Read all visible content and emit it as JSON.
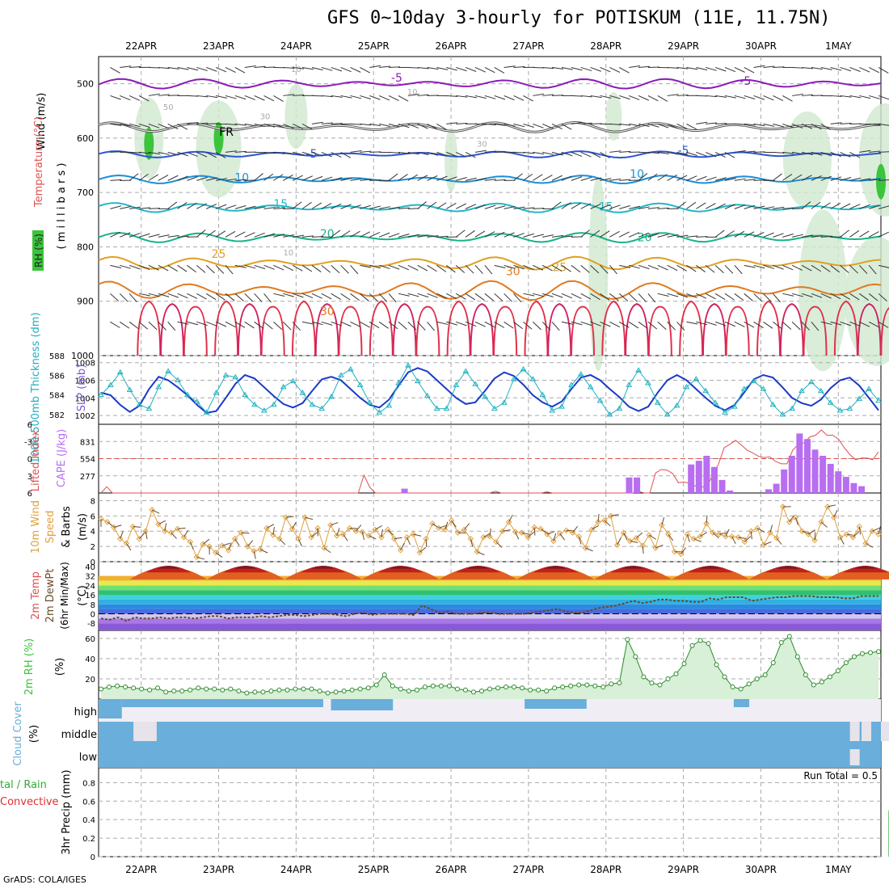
{
  "title": "GFS 0~10day 3-hourly for POTISKUM (11E, 11.75N)",
  "credit": "GrADS: COLA/IGES",
  "dates": [
    "22APR",
    "23APR",
    "24APR",
    "25APR",
    "26APR",
    "27APR",
    "28APR",
    "29APR",
    "30APR",
    "1MAY"
  ],
  "colors": {
    "temp_purple": "#8a1bb8",
    "freezing": "#000000",
    "t5": "#2a55d6",
    "t10": "#1a8fd6",
    "t15": "#20b8c8",
    "t20": "#17b38a",
    "t25": "#e0a020",
    "t30": "#e07a20",
    "hot": "#e0304a",
    "rh": "#3cc43c",
    "slp": "#1a3ac8",
    "thick": "#20b0c0",
    "cape": "#b86ef0",
    "li": "#e05050",
    "wind": "#e0a040",
    "dew": "#6a4a2a",
    "cloud": "#6aaedb",
    "precip_green": "#33aa33",
    "precip_red": "#e03030"
  },
  "chart_data": [
    {
      "type": "heatmap",
      "panel": "upper-air",
      "ylabel_wind": "Wind (m/s)",
      "ylabel_temp": "Temperature (°C)",
      "ylabel_rh": "RH (%)",
      "ylabel_units": "( m i l l i b a r s )",
      "yticks": [
        500,
        600,
        700,
        800,
        900,
        1000
      ],
      "ylim": [
        450,
        1000
      ],
      "isotherm_labels": [
        {
          "text": "-5",
          "day": 3.3,
          "p": 496
        },
        {
          "text": "-5",
          "day": 7.8,
          "p": 502
        },
        {
          "text": "FR",
          "day": 1.1,
          "p": 596
        },
        {
          "text": "-5",
          "day": 2.2,
          "p": 636
        },
        {
          "text": "-5",
          "day": 7.0,
          "p": 630
        },
        {
          "text": "10",
          "day": 1.3,
          "p": 680
        },
        {
          "text": "10",
          "day": 6.4,
          "p": 673
        },
        {
          "text": "15",
          "day": 1.8,
          "p": 728
        },
        {
          "text": "15",
          "day": 6.0,
          "p": 733
        },
        {
          "text": "20",
          "day": 2.4,
          "p": 783
        },
        {
          "text": "20",
          "day": 6.5,
          "p": 790
        },
        {
          "text": "25",
          "day": 1.0,
          "p": 820
        },
        {
          "text": "25",
          "day": 5.4,
          "p": 845
        },
        {
          "text": "30",
          "day": 4.8,
          "p": 852
        },
        {
          "text": "30",
          "day": 2.4,
          "p": 926
        }
      ],
      "rh_labels": [
        {
          "text": "10",
          "day": 2.0,
          "p": 478
        },
        {
          "text": "50",
          "day": 0.35,
          "p": 548
        },
        {
          "text": "30",
          "day": 1.6,
          "p": 565
        },
        {
          "text": "10",
          "day": 3.5,
          "p": 520
        },
        {
          "text": "30",
          "day": 4.4,
          "p": 616
        },
        {
          "text": "10",
          "day": 1.9,
          "p": 816
        }
      ]
    },
    {
      "type": "line",
      "panel": "slp-thickness",
      "ylabel_left": "1000-500mb Thickness (dm)",
      "ylabel_right": "SLP (mb)",
      "yticks_thick": [
        582,
        584,
        586,
        588
      ],
      "yticks_slp": [
        1002,
        1004,
        1006,
        1008
      ],
      "series": [
        {
          "name": "SLP",
          "values": [
            1004.6,
            1004.3,
            1003.2,
            1002.4,
            1003.1,
            1005.0,
            1006.4,
            1006.0,
            1005.2,
            1004.3,
            1003.2,
            1002.3,
            1002.5,
            1004.0,
            1005.6,
            1006.6,
            1006.2,
            1005.2,
            1004.2,
            1003.3,
            1002.9,
            1003.4,
            1004.8,
            1006.1,
            1006.4,
            1006.0,
            1005.0,
            1004.0,
            1003.2,
            1002.9,
            1003.8,
            1005.4,
            1006.9,
            1007.4,
            1007.0,
            1006.0,
            1005.0,
            1004.0,
            1003.3,
            1003.5,
            1004.8,
            1006.2,
            1006.9,
            1006.5,
            1005.5,
            1004.3,
            1003.5,
            1003.0,
            1003.6,
            1005.0,
            1006.3,
            1006.6,
            1006.0,
            1005.0,
            1004.1,
            1003.0,
            1002.5,
            1003.0,
            1004.6,
            1006.0,
            1006.6,
            1006.0,
            1005.0,
            1004.0,
            1003.1,
            1002.6,
            1003.2,
            1004.6,
            1006.1,
            1006.6,
            1006.3,
            1005.2,
            1004.0,
            1003.4,
            1003.1,
            1003.8,
            1005.1,
            1006.0,
            1006.3,
            1005.4,
            1004.0,
            1002.6
          ]
        },
        {
          "name": "Thickness",
          "values": [
            584.0,
            585.0,
            586.3,
            584.5,
            583.0,
            582.6,
            584.8,
            586.4,
            585.5,
            584.0,
            583.3,
            582.2,
            584.2,
            586.0,
            585.8,
            584.0,
            583.0,
            582.4,
            583.0,
            584.8,
            585.4,
            584.2,
            583.0,
            582.6,
            583.8,
            586.0,
            586.6,
            585.0,
            583.2,
            582.2,
            582.9,
            585.2,
            587.0,
            585.4,
            583.9,
            582.6,
            582.6,
            585.0,
            586.4,
            585.1,
            583.8,
            582.6,
            583.2,
            585.6,
            586.6,
            585.6,
            584.0,
            582.4,
            582.8,
            585.0,
            586.1,
            584.8,
            583.4,
            582.0,
            582.6,
            585.0,
            586.5,
            585.2,
            583.2,
            582.0,
            582.9,
            584.8,
            585.6,
            584.4,
            583.2,
            582.2,
            582.8,
            584.6,
            585.4,
            584.6,
            583.0,
            582.0,
            582.6,
            584.4,
            585.3,
            584.4,
            583.2,
            582.4,
            582.6,
            583.6,
            584.6,
            583.4
          ]
        }
      ]
    },
    {
      "type": "bar",
      "panel": "cape-li",
      "ylabel_li": "Lifted Index",
      "ylabel_cape": "CAPE (J/kg)",
      "yticks_li": [
        "6",
        "-3",
        "0",
        "3",
        "6"
      ],
      "yticks_cape": [
        277,
        554,
        831
      ],
      "li_values": [
        6,
        4.9,
        6,
        6,
        6,
        6,
        6,
        6,
        6,
        6,
        6,
        6,
        6,
        6,
        6,
        6,
        6,
        6,
        6,
        6,
        6,
        6,
        6,
        6,
        6,
        6,
        6,
        6,
        6,
        6,
        6,
        6,
        6,
        6,
        6,
        6,
        6,
        6,
        6,
        6,
        6,
        6,
        6,
        6,
        6,
        6,
        2.9,
        5,
        6,
        6,
        6,
        6,
        6,
        6,
        6,
        6,
        6,
        6,
        6,
        6,
        6,
        6,
        6,
        6,
        6,
        6,
        6,
        6,
        6,
        5.7,
        6,
        6,
        6,
        6,
        6,
        6,
        6,
        6,
        5.8,
        6,
        6,
        6,
        6,
        6,
        6,
        6,
        6,
        6,
        6,
        6,
        6,
        6,
        6,
        6,
        5.7,
        6,
        6,
        2.5,
        1.9,
        2,
        2.6,
        4.2,
        4.1,
        4.3,
        4.8,
        4.9,
        5.0,
        2.8,
        1.0,
        -1.9,
        -2.5,
        -3.2,
        -2.4,
        -1.5,
        -1.0,
        -0.4,
        -0.2,
        -0.3,
        0.5,
        0.9,
        0.9,
        -1.5,
        -2.5,
        -2.8,
        -3.8,
        -4.1,
        -5.0,
        -4.1,
        -4.1,
        -3.4,
        -1.9,
        -0.7,
        0.2,
        -0.1,
        -0.1,
        0.2,
        -1.2
      ],
      "cape_values": [
        0,
        0,
        0,
        0,
        0,
        0,
        0,
        0,
        0,
        0,
        0,
        0,
        0,
        0,
        0,
        0,
        0,
        0,
        0,
        0,
        0,
        0,
        0,
        0,
        0,
        0,
        0,
        0,
        0,
        0,
        0,
        0,
        0,
        0,
        0,
        0,
        0,
        0,
        0,
        0,
        0,
        0,
        0,
        0,
        0,
        0,
        0,
        0,
        0,
        0,
        0,
        0,
        0,
        0,
        0,
        0,
        0,
        0,
        0,
        0,
        0,
        0,
        0,
        0,
        0,
        0,
        0,
        0,
        0,
        0,
        0,
        0,
        0,
        0,
        0,
        0,
        0,
        0,
        0,
        0,
        0,
        0,
        0,
        0,
        0,
        0,
        0,
        0,
        0,
        0,
        0,
        0,
        0,
        0,
        0,
        0,
        0,
        0,
        0,
        0,
        0,
        0,
        0,
        0,
        0,
        0,
        0,
        0,
        0,
        0,
        0,
        0,
        0,
        0,
        0,
        0,
        0,
        0,
        0,
        0,
        0,
        0,
        0,
        0,
        0,
        0,
        0,
        0,
        0,
        0,
        0,
        0,
        0,
        0,
        0,
        0,
        0,
        0,
        0,
        0,
        0,
        0,
        0,
        0,
        0,
        0,
        0,
        0,
        0,
        0
      ]
    },
    {
      "type": "line",
      "panel": "wind10m",
      "ylabel": "10m Wind Speed & Barbs (m/s)",
      "yticks": [
        0,
        2,
        4,
        6,
        8
      ],
      "series": [
        {
          "name": "10m Wind Speed",
          "values": [
            5.6,
            5.2,
            4.5,
            3.0,
            2.4,
            4.6,
            3.0,
            4.0,
            6.8,
            4.9,
            4.0,
            3.8,
            4.3,
            3.2,
            2.6,
            0.6,
            2.3,
            2.0,
            1.2,
            2.1,
            1.5,
            3.0,
            3.8,
            2.0,
            1.4,
            1.6,
            4.4,
            3.5,
            3.0,
            5.8,
            4.3,
            3.0,
            5.8,
            3.2,
            4.4,
            1.8,
            4.8,
            3.4,
            3.6,
            4.4,
            4.0,
            3.9,
            3.4,
            4.2,
            3.2,
            4.2,
            3.0,
            1.5,
            3.2,
            3.6,
            1.2,
            3.0,
            5.0,
            4.4,
            4.2,
            5.4,
            3.8,
            4.2,
            3.0,
            1.3,
            3.2,
            3.3,
            2.6,
            4.0,
            5.2,
            3.9,
            3.8,
            3.2,
            4.5,
            4.3,
            3.6,
            2.7,
            3.7,
            4.1,
            3.8,
            3.3,
            1.8,
            4.2,
            5.2,
            5.4,
            6.0,
            2.2,
            3.8,
            2.7,
            3.1,
            2.1,
            3.5,
            1.8,
            4.8,
            3.6,
            1.3,
            1.0,
            3.6,
            3.0,
            3.3,
            5.0,
            3.8,
            3.6,
            3.3,
            3.3,
            3.2,
            2.6,
            4.0,
            4.4,
            2.2,
            3.8,
            3.1,
            7.2,
            5.2,
            5.8,
            4.0,
            3.6,
            2.8,
            5.2,
            7.2,
            5.8,
            3.2,
            3.6,
            3.2,
            4.6,
            2.4,
            4.0,
            3.6
          ]
        }
      ]
    },
    {
      "type": "area",
      "panel": "temperature",
      "ylabel": "2m Temp 2m DewPt (6hr Min/Max) (°C)",
      "yticks": [
        -8,
        0,
        8,
        16,
        24,
        32,
        40
      ],
      "temp_min": [
        27,
        28,
        27,
        28,
        27,
        28,
        28,
        28,
        28,
        28,
        27,
        27,
        28
      ],
      "temp_max": [
        38,
        40,
        40,
        40,
        41,
        40,
        40,
        40,
        40,
        39
      ],
      "dew_values": [
        -4,
        -5,
        -3,
        -6,
        -3,
        -4,
        -4,
        -3,
        -4,
        -3,
        -3,
        -4,
        -3,
        -2,
        -2,
        -4,
        -3,
        -3,
        -3,
        -2,
        -3,
        -2,
        -1,
        -1,
        -2,
        -1,
        0,
        0,
        -1,
        -2,
        0,
        1,
        -1,
        0,
        0,
        0,
        0,
        -1,
        7,
        4,
        1,
        2,
        0,
        0,
        0,
        1,
        1,
        0,
        0,
        0,
        0,
        1,
        2,
        3,
        4,
        2,
        1,
        1,
        3,
        5,
        6,
        7,
        9,
        11,
        9,
        10,
        12,
        12,
        11,
        11,
        10,
        10,
        13,
        12,
        14,
        14,
        14,
        11,
        12,
        13,
        14,
        14,
        15,
        15,
        15,
        14,
        14,
        14,
        13,
        13,
        15,
        15,
        15
      ]
    },
    {
      "type": "area",
      "panel": "rh2m",
      "ylabel": "2m RH (%)",
      "yticks": [
        20,
        40,
        60
      ],
      "values": [
        10,
        12,
        13,
        12,
        11,
        10,
        9,
        11,
        7,
        8,
        8,
        9,
        11,
        10,
        10,
        9,
        10,
        8,
        6,
        7,
        7,
        8,
        9,
        9,
        10,
        10,
        10,
        8,
        6,
        7,
        8,
        9,
        10,
        11,
        14,
        24,
        13,
        10,
        8,
        9,
        12,
        13,
        13,
        13,
        10,
        9,
        7,
        8,
        10,
        11,
        12,
        12,
        11,
        9,
        9,
        8,
        11,
        12,
        13,
        14,
        14,
        13,
        12,
        15,
        16,
        59,
        42,
        22,
        16,
        14,
        20,
        25,
        35,
        53,
        58,
        55,
        34,
        22,
        12,
        10,
        15,
        20,
        24,
        36,
        56,
        62,
        42,
        24,
        14,
        17,
        22,
        28,
        36,
        42,
        45,
        46,
        47
      ]
    },
    {
      "type": "bar",
      "panel": "cloud",
      "ylabel": "Cloud Cover (%)",
      "levels": [
        "high",
        "middle",
        "low"
      ]
    },
    {
      "type": "bar",
      "panel": "precip",
      "ylabel": "3hr Precip (mm)",
      "legend": "Total / Rain Convective",
      "annotation": "Run Total = 0.5",
      "yticks": [
        0,
        0.2,
        0.4,
        0.6,
        0.8
      ],
      "total_values": [
        {
          "day": 9.7,
          "value": 0.5
        }
      ],
      "convective_values": [
        {
          "day": 9.7,
          "value": 0.5
        }
      ]
    }
  ]
}
